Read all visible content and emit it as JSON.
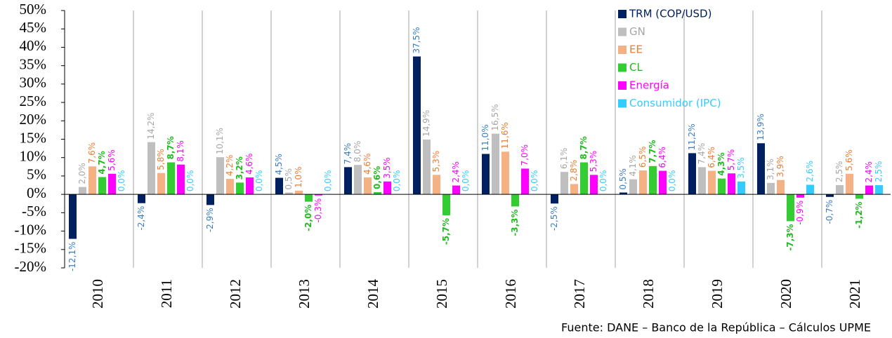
{
  "chart_data": {
    "type": "bar",
    "source": "Fuente: DANE – Banco de la República – Cálculos UPME",
    "categories": [
      "2010",
      "2011",
      "2012",
      "2013",
      "2014",
      "2015",
      "2016",
      "2017",
      "2018",
      "2019",
      "2020",
      "2021"
    ],
    "series": [
      {
        "name": "TRM (COP/USD)",
        "color": "#002060",
        "label_color": "#3a7ebf",
        "values": [
          -12.1,
          -2.4,
          -2.9,
          4.5,
          7.4,
          37.5,
          11.0,
          -2.5,
          0.5,
          11.2,
          13.9,
          -0.7
        ],
        "value_labels": [
          "-12,1%",
          "-2,4%",
          "-2,9%",
          "4,5%",
          "7,4%",
          "37,5%",
          "11,0%",
          "-2,5%",
          "0,5%",
          "11,2%",
          "13,9%",
          "-0,7%"
        ]
      },
      {
        "name": "GN",
        "color": "#bfbfbf",
        "label_color": "#a6a6a6",
        "values": [
          2.0,
          14.2,
          10.1,
          0.5,
          8.0,
          14.9,
          16.5,
          6.1,
          4.1,
          7.4,
          3.1,
          2.5
        ],
        "value_labels": [
          "2,0%",
          "14,2%",
          "10,1%",
          "0,5%",
          "8,0%",
          "14,9%",
          "16,5%",
          "6,1%",
          "4,1%",
          "7,4%",
          "3,1%",
          "2,5%"
        ]
      },
      {
        "name": "EE",
        "color": "#f4b183",
        "label_color": "#ed7d31",
        "values": [
          7.6,
          5.8,
          4.2,
          1.0,
          4.6,
          5.3,
          11.6,
          2.8,
          6.5,
          6.4,
          3.9,
          5.6
        ],
        "value_labels": [
          "7,6%",
          "5,8%",
          "4,2%",
          "1,0%",
          "4,6%",
          "5,3%",
          "11,6%",
          "2,8%",
          "6,5%",
          "6,4%",
          "3,9%",
          "5,6%"
        ]
      },
      {
        "name": "CL",
        "color": "#33cc33",
        "label_color": "#22bb22",
        "values": [
          4.7,
          8.7,
          3.2,
          -2.0,
          0.6,
          -5.7,
          -3.3,
          8.7,
          7.7,
          4.3,
          -7.3,
          -1.2
        ],
        "value_labels": [
          "4,7%",
          "8,7%",
          "3,2%",
          "-2,0%",
          "0,6%",
          "-5,7%",
          "-3,3%",
          "8,7%",
          "7,7%",
          "4,3%",
          "-7,3%",
          "-1,2%"
        ]
      },
      {
        "name": "Energía",
        "color": "#ff00ff",
        "label_color": "#ff00ff",
        "values": [
          5.6,
          8.1,
          4.6,
          -0.3,
          3.5,
          2.4,
          7.0,
          5.3,
          6.4,
          5.7,
          -0.9,
          2.4
        ],
        "value_labels": [
          "5,6%",
          "8,1%",
          "4,6%",
          "-0,3%",
          "3,5%",
          "2,4%",
          "7,0%",
          "5,3%",
          "6,4%",
          "5,7%",
          "-0,9%",
          "2,4%"
        ]
      },
      {
        "name": "Consumidor (IPC)",
        "color": "#33ccff",
        "label_color": "#33ccff",
        "values": [
          0.0,
          0.0,
          0.0,
          0.0,
          0.0,
          0.0,
          0.0,
          0.0,
          0.0,
          3.5,
          2.6,
          2.5
        ],
        "value_labels": [
          "0,0%",
          "0,0%",
          "0,0%",
          "0,0%",
          "0,0%",
          "0,0%",
          "0,0%",
          "0,0%",
          "0,0%",
          "3,5%",
          "2,6%",
          "2,5%"
        ]
      }
    ],
    "ylim": [
      -20,
      50
    ],
    "yticks": [
      {
        "value": -20,
        "label": "-20%"
      },
      {
        "value": -15,
        "label": "-15%"
      },
      {
        "value": -10,
        "label": "-10%"
      },
      {
        "value": -5,
        "label": "-5%"
      },
      {
        "value": 0,
        "label": "0%"
      },
      {
        "value": 5,
        "label": "5%"
      },
      {
        "value": 10,
        "label": "10%"
      },
      {
        "value": 15,
        "label": "15%"
      },
      {
        "value": 20,
        "label": "20%"
      },
      {
        "value": 25,
        "label": "25%"
      },
      {
        "value": 30,
        "label": "30%"
      },
      {
        "value": 35,
        "label": "35%"
      },
      {
        "value": 40,
        "label": "40%"
      },
      {
        "value": 45,
        "label": "45%"
      },
      {
        "value": 50,
        "label": "50%"
      }
    ],
    "grid": false,
    "legend": "upper right"
  }
}
